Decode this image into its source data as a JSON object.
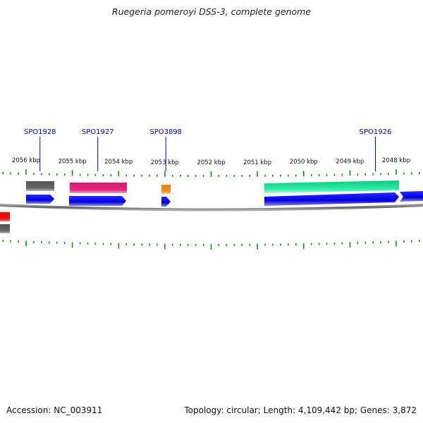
{
  "title": "Ruegeria pomeroyi DSS-3, complete genome",
  "footer": {
    "accession": "Accession: NC_003911",
    "stats": "Topology: circular; Length: 4,109,442 bp; Genes: 3,872"
  },
  "colors": {
    "gene_blue": "#0000ee",
    "gene_gray": "#666666",
    "gene_pink": "#e8287f",
    "gene_orange": "#f0901c",
    "gene_green": "#20e8a0",
    "gene_red": "#ee0000",
    "label_blue": "#0000cc",
    "tick_green": "#1a8a1a",
    "backbone": "#777777"
  },
  "chart_data": {
    "type": "genome_map",
    "scale_labels": [
      {
        "text": "2056 kbp",
        "kbp": 2056
      },
      {
        "text": "2055 kbp",
        "kbp": 2055
      },
      {
        "text": "2054 kbp",
        "kbp": 2054
      },
      {
        "text": "2053 kbp",
        "kbp": 2053
      },
      {
        "text": "2052 kbp",
        "kbp": 2052
      },
      {
        "text": "2051 kbp",
        "kbp": 2051
      },
      {
        "text": "2050 kbp",
        "kbp": 2050
      },
      {
        "text": "2049 kbp",
        "kbp": 2049
      },
      {
        "text": "2048 kbp",
        "kbp": 2048
      }
    ],
    "gene_labels": [
      {
        "text": "SPO1928",
        "kbp": 2055.7
      },
      {
        "text": "SPO1927",
        "kbp": 2054.45
      },
      {
        "text": "SPO3898",
        "kbp": 2052.98
      },
      {
        "text": "SPO1926",
        "kbp": 2048.45
      }
    ]
  }
}
